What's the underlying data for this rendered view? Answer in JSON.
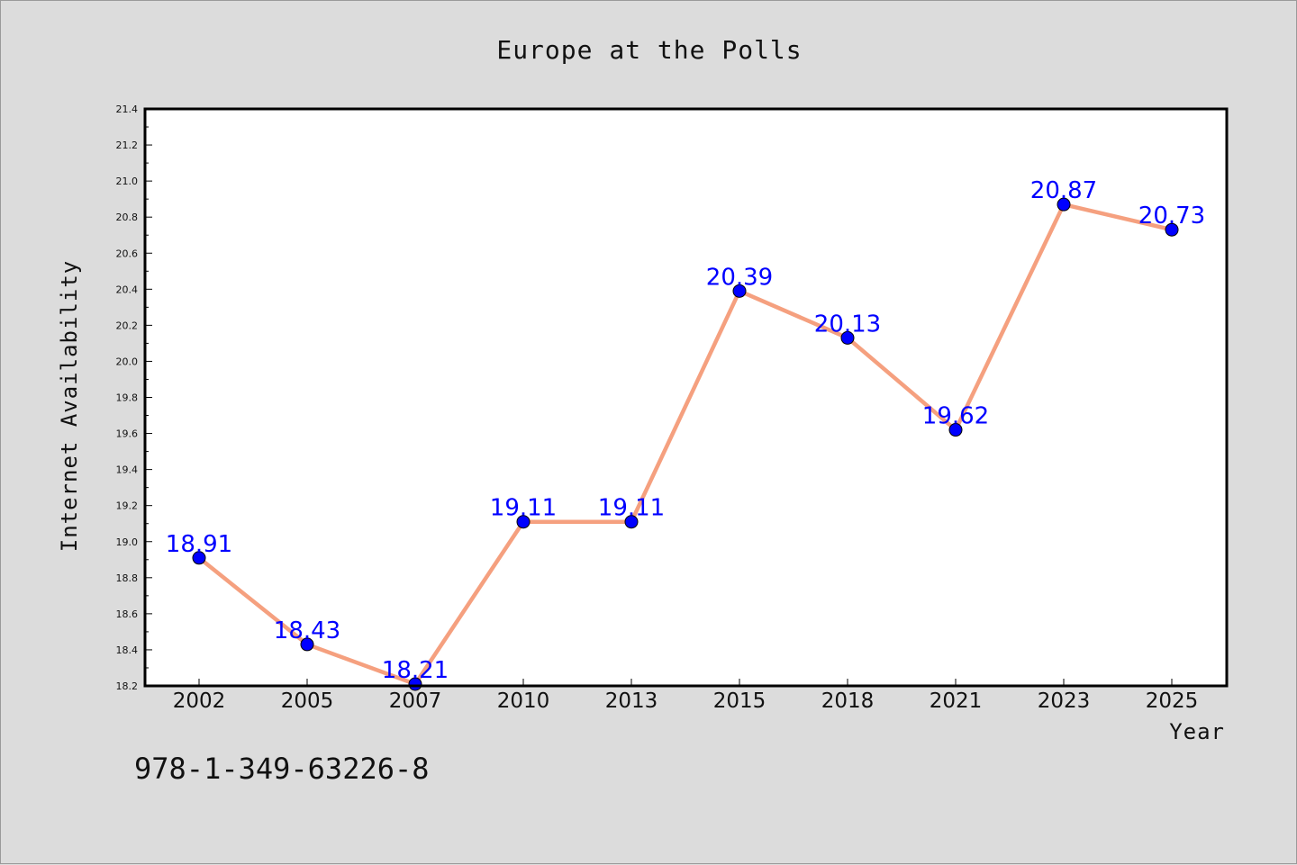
{
  "chart_data": {
    "type": "line",
    "title": "Europe at the Polls",
    "xlabel": "Year",
    "ylabel": "Internet Availability",
    "categories": [
      "2002",
      "2005",
      "2007",
      "2010",
      "2013",
      "2015",
      "2018",
      "2021",
      "2023",
      "2025"
    ],
    "series": [
      {
        "values": [
          18.91,
          18.43,
          18.21,
          19.11,
          19.11,
          20.39,
          20.13,
          19.62,
          20.87,
          20.73
        ],
        "labels": [
          "18.91",
          "18.43",
          "18.21",
          "19.11",
          "19.11",
          "20.39",
          "20.13",
          "19.62",
          "20.87",
          "20.73"
        ],
        "line_color": "#f5a07f",
        "marker_color": "#0000ff"
      }
    ],
    "ylim": [
      18.2,
      21.4
    ],
    "yticks": [
      "18.2",
      "18.4",
      "18.6",
      "18.8",
      "19.0",
      "19.2",
      "19.4",
      "19.6",
      "19.8",
      "20.0",
      "20.2",
      "20.4",
      "20.6",
      "20.8",
      "21.0",
      "21.2",
      "21.4"
    ],
    "grid": false,
    "legend": "none"
  },
  "footer": {
    "isbn": "978-1-349-63226-8"
  },
  "colors": {
    "background": "#dcdcdc",
    "plot_background": "#ffffff",
    "data_label": "#0000ff"
  }
}
